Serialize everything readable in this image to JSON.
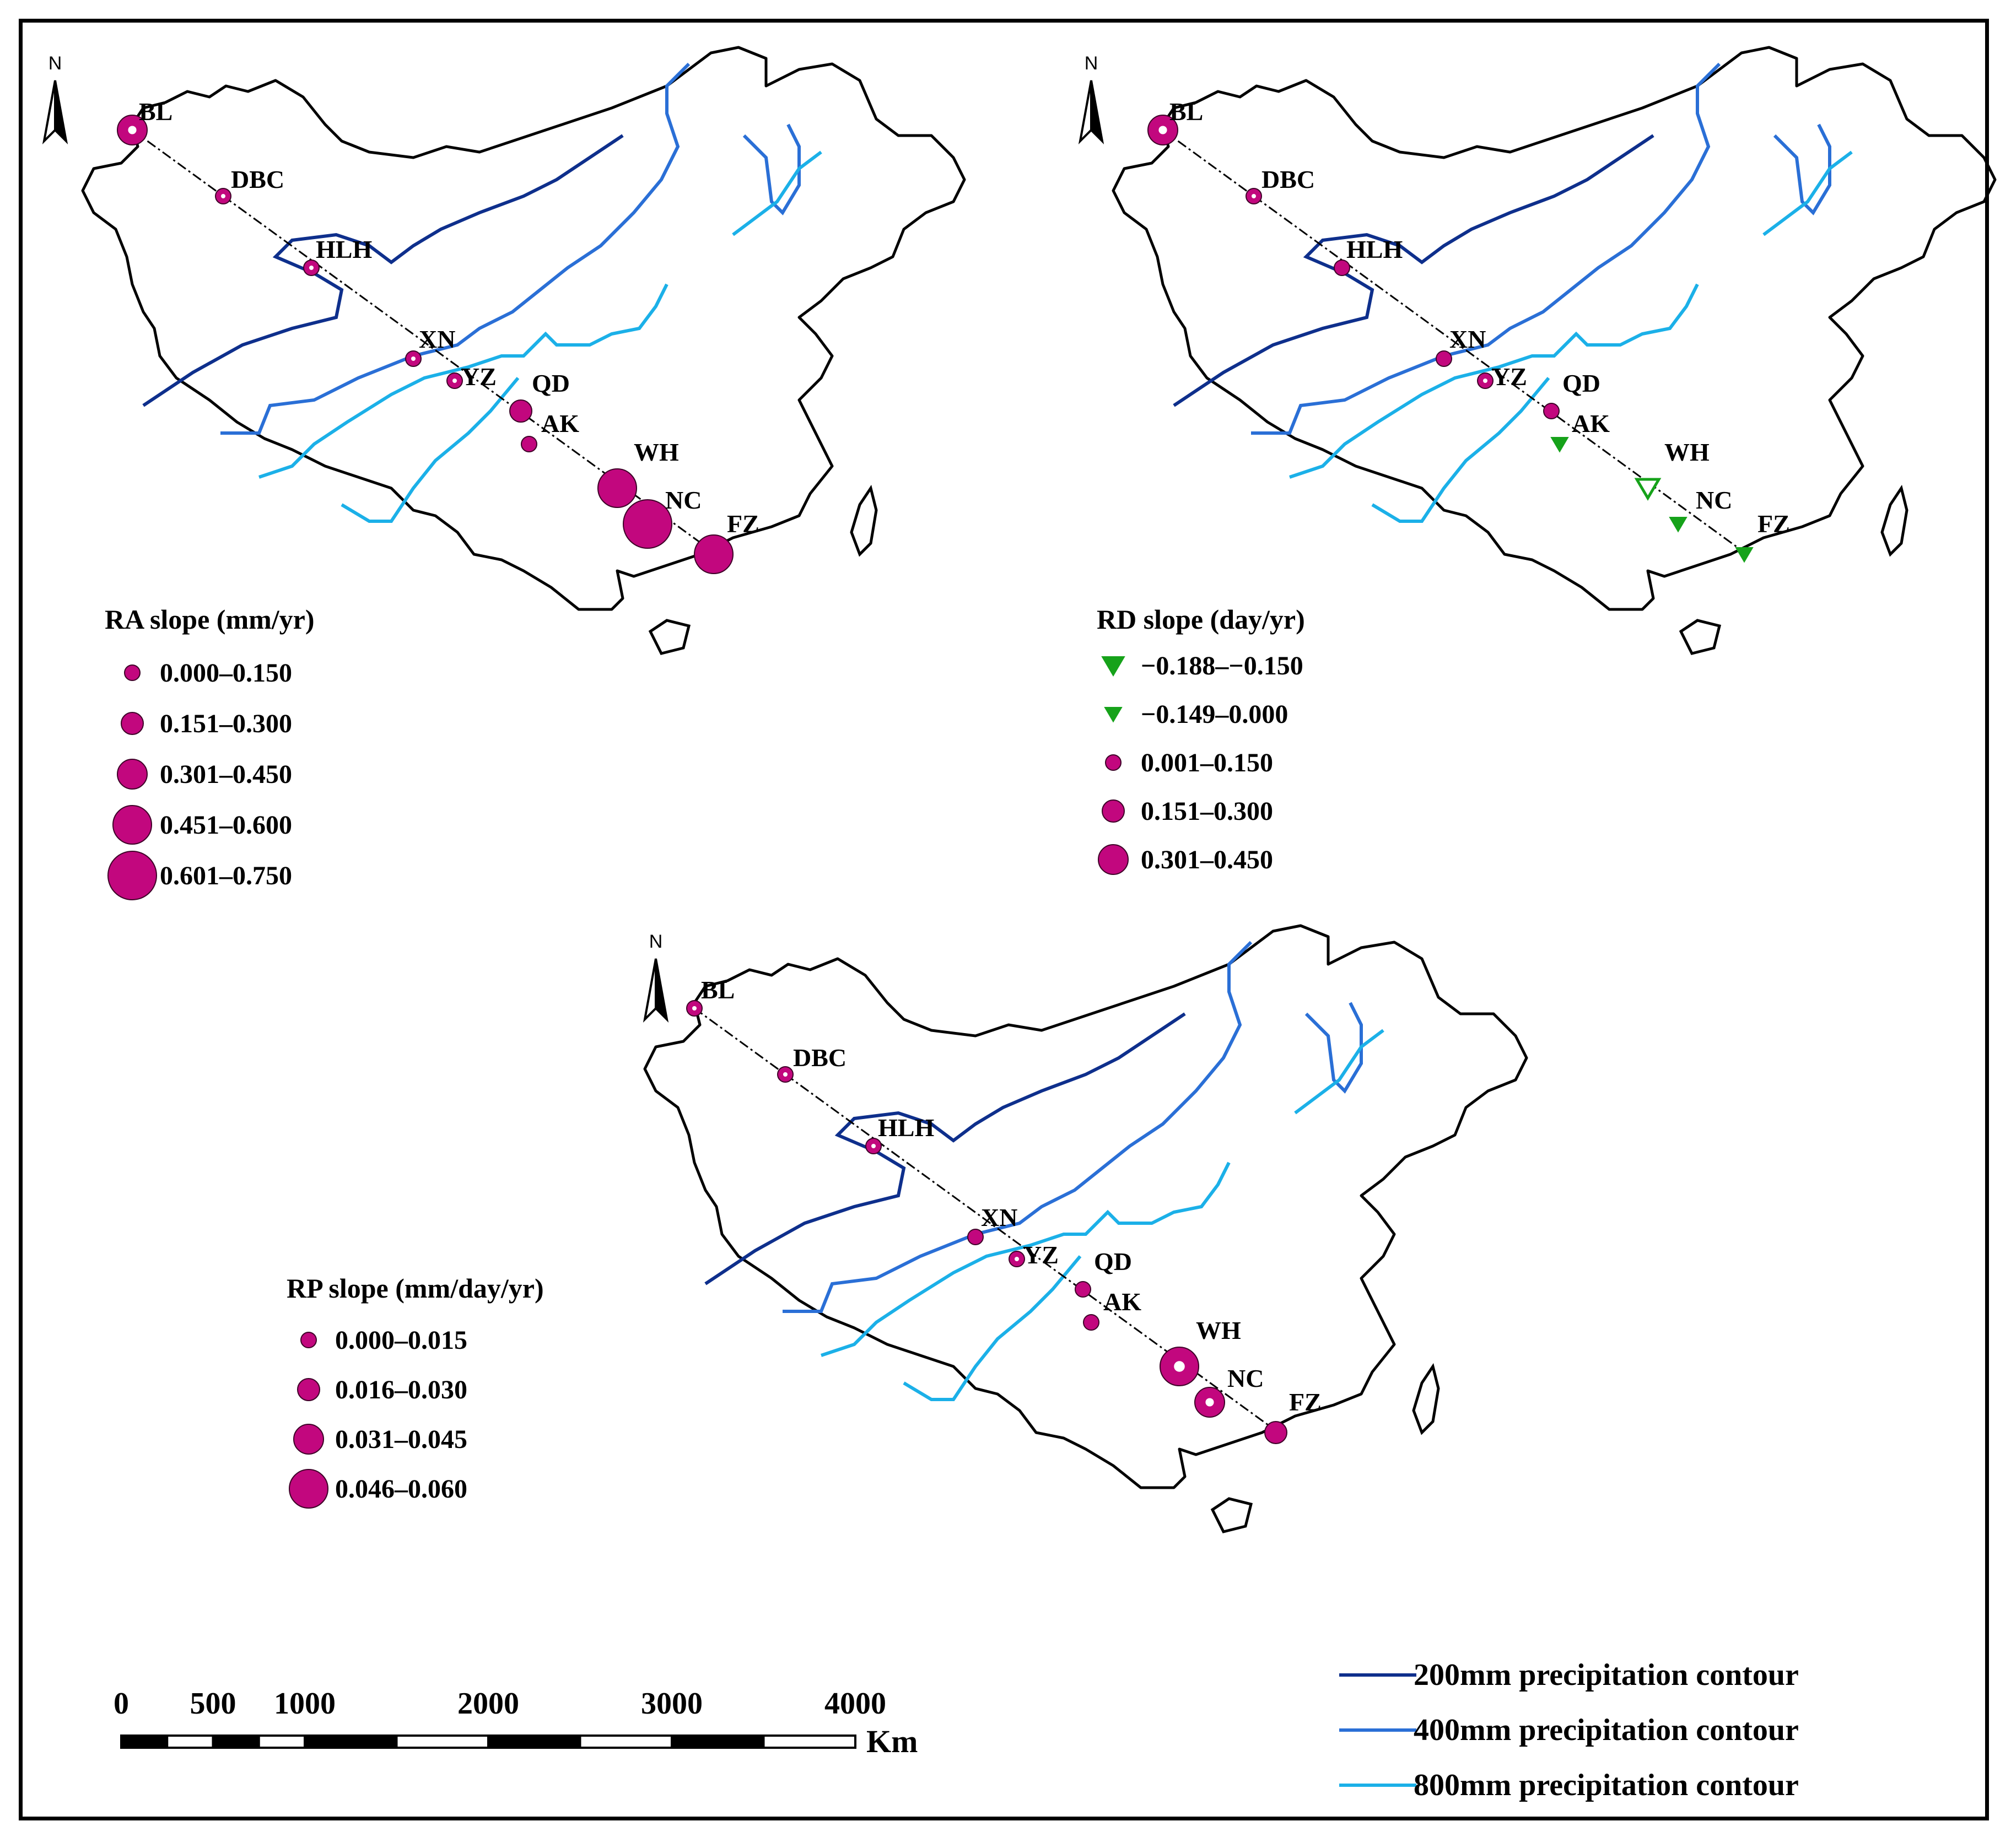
{
  "colors": {
    "marker": "#C2077E",
    "marker_stroke": "#3d0027",
    "negative": "#16A21A",
    "contour_200": "#0E2F8C",
    "contour_400": "#2A6FD6",
    "contour_800": "#1BB0E8",
    "border": "#000000"
  },
  "north_label": "N",
  "maps": [
    {
      "id": "ra",
      "legend_title": "RA slope (mm/yr)",
      "legend": [
        {
          "label": "0.000–0.150",
          "shape": "circle",
          "size": 1
        },
        {
          "label": "0.151–0.300",
          "shape": "circle",
          "size": 2
        },
        {
          "label": "0.301–0.450",
          "shape": "circle",
          "size": 3
        },
        {
          "label": "0.451–0.600",
          "shape": "circle",
          "size": 4
        },
        {
          "label": "0.601–0.750",
          "shape": "circle",
          "size": 5
        }
      ],
      "stations": [
        {
          "name": "BL",
          "shape": "circle",
          "size": 3,
          "hollow": true
        },
        {
          "name": "DBC",
          "shape": "circle",
          "size": 1,
          "hollow": true
        },
        {
          "name": "HLH",
          "shape": "circle",
          "size": 1,
          "hollow": true
        },
        {
          "name": "XN",
          "shape": "circle",
          "size": 1,
          "hollow": true
        },
        {
          "name": "YZ",
          "shape": "circle",
          "size": 1,
          "hollow": true
        },
        {
          "name": "QD",
          "shape": "circle",
          "size": 2,
          "hollow": false
        },
        {
          "name": "AK",
          "shape": "circle",
          "size": 1,
          "hollow": false
        },
        {
          "name": "WH",
          "shape": "circle",
          "size": 4,
          "hollow": false
        },
        {
          "name": "NC",
          "shape": "circle",
          "size": 5,
          "hollow": false
        },
        {
          "name": "FZ",
          "shape": "circle",
          "size": 4,
          "hollow": false
        }
      ]
    },
    {
      "id": "rd",
      "legend_title": "RD slope (day/yr)",
      "legend": [
        {
          "label": "−0.188–−0.150",
          "shape": "triangle",
          "size": 2
        },
        {
          "label": "−0.149–0.000",
          "shape": "triangle",
          "size": 1
        },
        {
          "label": "0.001–0.150",
          "shape": "circle",
          "size": 1
        },
        {
          "label": "0.151–0.300",
          "shape": "circle",
          "size": 2
        },
        {
          "label": "0.301–0.450",
          "shape": "circle",
          "size": 3
        }
      ],
      "stations": [
        {
          "name": "BL",
          "shape": "circle",
          "size": 3,
          "hollow": true
        },
        {
          "name": "DBC",
          "shape": "circle",
          "size": 1,
          "hollow": true
        },
        {
          "name": "HLH",
          "shape": "circle",
          "size": 1,
          "hollow": false
        },
        {
          "name": "XN",
          "shape": "circle",
          "size": 1,
          "hollow": false
        },
        {
          "name": "YZ",
          "shape": "circle",
          "size": 1,
          "hollow": true
        },
        {
          "name": "QD",
          "shape": "circle",
          "size": 1,
          "hollow": false
        },
        {
          "name": "AK",
          "shape": "triangle",
          "size": 1,
          "hollow": false
        },
        {
          "name": "WH",
          "shape": "triangle",
          "size": 2,
          "hollow": true
        },
        {
          "name": "NC",
          "shape": "triangle",
          "size": 1,
          "hollow": false
        },
        {
          "name": "FZ",
          "shape": "triangle",
          "size": 1,
          "hollow": false
        }
      ]
    },
    {
      "id": "rp",
      "legend_title": "RP slope (mm/day/yr)",
      "legend": [
        {
          "label": "0.000–0.015",
          "shape": "circle",
          "size": 1
        },
        {
          "label": "0.016–0.030",
          "shape": "circle",
          "size": 2
        },
        {
          "label": "0.031–0.045",
          "shape": "circle",
          "size": 3
        },
        {
          "label": "0.046–0.060",
          "shape": "circle",
          "size": 4
        }
      ],
      "stations": [
        {
          "name": "BL",
          "shape": "circle",
          "size": 1,
          "hollow": true
        },
        {
          "name": "DBC",
          "shape": "circle",
          "size": 1,
          "hollow": true
        },
        {
          "name": "HLH",
          "shape": "circle",
          "size": 1,
          "hollow": true
        },
        {
          "name": "XN",
          "shape": "circle",
          "size": 1,
          "hollow": false
        },
        {
          "name": "YZ",
          "shape": "circle",
          "size": 1,
          "hollow": true
        },
        {
          "name": "QD",
          "shape": "circle",
          "size": 1,
          "hollow": false
        },
        {
          "name": "AK",
          "shape": "circle",
          "size": 1,
          "hollow": false
        },
        {
          "name": "WH",
          "shape": "circle",
          "size": 4,
          "hollow": true
        },
        {
          "name": "NC",
          "shape": "circle",
          "size": 3,
          "hollow": true
        },
        {
          "name": "FZ",
          "shape": "circle",
          "size": 2,
          "hollow": false
        }
      ]
    }
  ],
  "contour_legend": [
    {
      "label": "200mm precipitation contour",
      "color_key": "contour_200"
    },
    {
      "label": "400mm precipitation contour",
      "color_key": "contour_400"
    },
    {
      "label": "800mm precipitation contour",
      "color_key": "contour_800"
    }
  ],
  "scale_bar": {
    "ticks": [
      "0",
      "500",
      "1000",
      "2000",
      "3000",
      "4000"
    ],
    "unit": "Km"
  }
}
